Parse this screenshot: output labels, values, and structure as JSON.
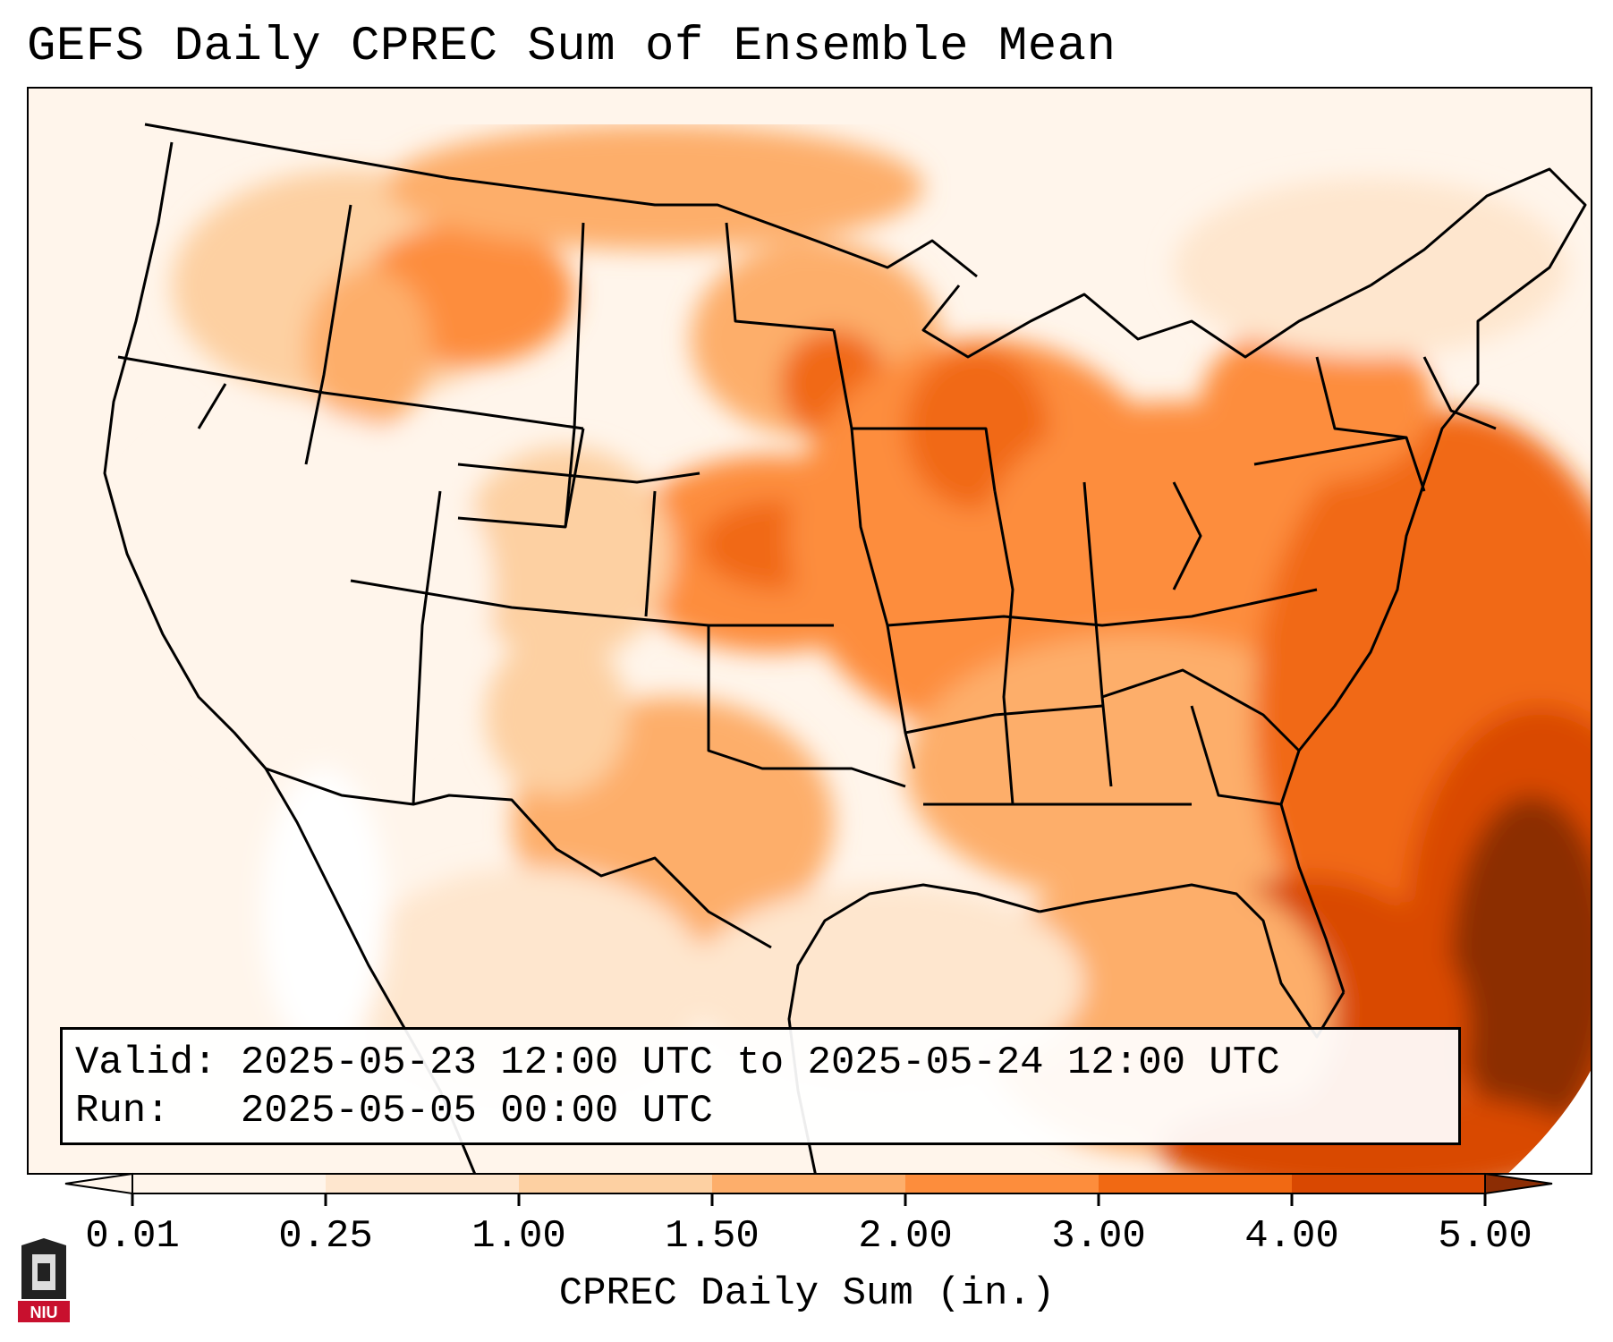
{
  "title": "GEFS Daily CPREC Sum of Ensemble Mean",
  "info": {
    "valid_label": "Valid:",
    "valid_value": "2025-05-23 12:00 UTC to 2025-05-24 12:00 UTC",
    "run_label": "Run:",
    "run_value": "2025-05-05 00:00 UTC"
  },
  "colorbar": {
    "label": "CPREC Daily Sum (in.)",
    "ticks": [
      "0.01",
      "0.25",
      "1.00",
      "1.50",
      "2.00",
      "3.00",
      "4.00",
      "5.00"
    ],
    "colors": [
      "#fff5eb",
      "#fee6ce",
      "#fdd0a2",
      "#fdae6b",
      "#fd8d3c",
      "#f16913",
      "#d94801",
      "#8c2d04"
    ]
  },
  "map": {
    "region": "Continental United States",
    "projection": "Lambert Conformal",
    "boundaries": [
      "coastlines",
      "state borders",
      "country borders"
    ]
  },
  "logo": {
    "text": "NIU",
    "color": "#c8102e"
  }
}
